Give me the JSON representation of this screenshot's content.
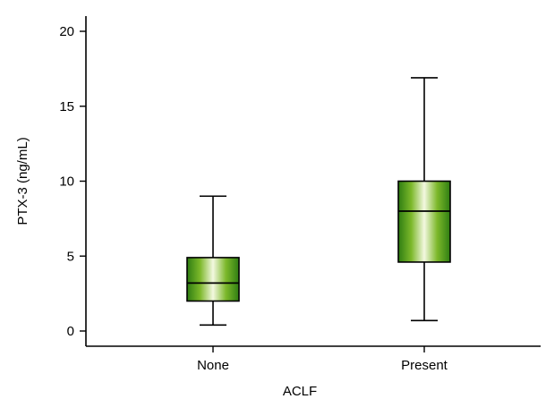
{
  "chart_data": {
    "type": "boxplot",
    "title": "",
    "xlabel": "ACLF",
    "ylabel": "PTX-3 (ng/mL)",
    "ylim": [
      -1,
      21
    ],
    "yticks": [
      0,
      5,
      10,
      15,
      20
    ],
    "categories": [
      "None",
      "Present"
    ],
    "boxes": [
      {
        "category": "None",
        "whisker_low": 0.4,
        "q1": 2.0,
        "median": 3.2,
        "q3": 4.9,
        "whisker_high": 9.0
      },
      {
        "category": "Present",
        "whisker_low": 0.7,
        "q1": 4.6,
        "median": 8.0,
        "q3": 10.0,
        "whisker_high": 16.9
      }
    ],
    "colors": {
      "fill_dark": "#2e7d12",
      "fill_mid": "#7cb82a",
      "fill_light": "#f3f8e0"
    },
    "grid": false,
    "legend": "none"
  }
}
